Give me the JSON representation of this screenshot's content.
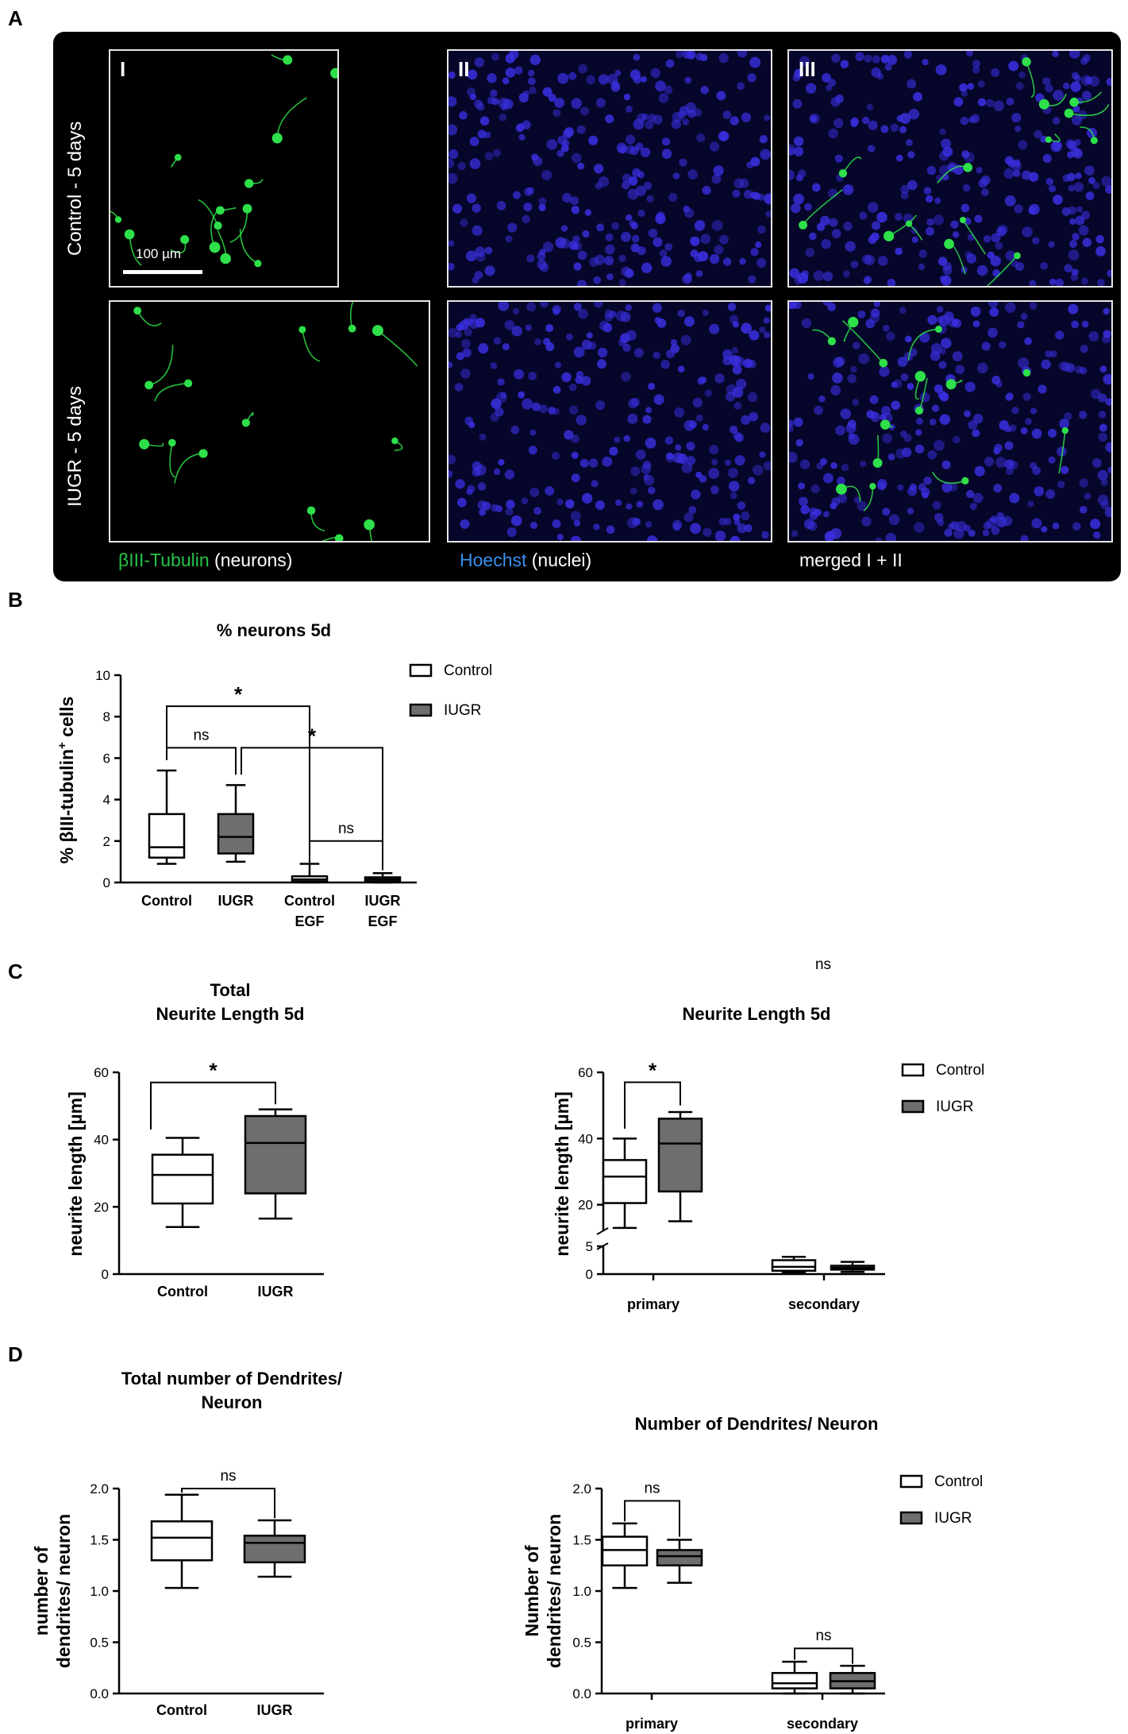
{
  "panelA": {
    "label": "A",
    "row_labels": [
      "Control - 5 days",
      "IUGR - 5 days"
    ],
    "column_labels": [
      "I",
      "II",
      "III"
    ],
    "scale_bar": "100 µm",
    "captions": {
      "c1_colored": "βIII-Tubulin",
      "c1_rest": " (neurons)",
      "c2_colored": "Hoechst",
      "c2_rest": " (nuclei)",
      "c3": "merged I + II"
    },
    "colors": {
      "neurons": "#2ee04a",
      "nuclei": "#3a2fe0",
      "caption_green": "#27c24a",
      "caption_blue": "#3a8ff0"
    }
  },
  "panelB": {
    "label": "B",
    "chart_data": {
      "type": "box",
      "title": "% neurons 5d",
      "ylabel": "% βIII-tubulin+ cells",
      "ylabel_main": "% βIII-tubulin",
      "ylabel_sup": "+",
      "ylabel_tail": " cells",
      "ylim": [
        0,
        10
      ],
      "yticks": [
        "0",
        "2",
        "4",
        "6",
        "8",
        "10"
      ],
      "categories": [
        [
          "Control"
        ],
        [
          "IUGR"
        ],
        [
          "Control",
          "EGF"
        ],
        [
          "IUGR",
          "EGF"
        ]
      ],
      "boxes": [
        {
          "group": "Control",
          "min": 0.9,
          "q1": 1.2,
          "median": 1.7,
          "q3": 3.3,
          "max": 5.4
        },
        {
          "group": "IUGR",
          "min": 1.0,
          "q1": 1.4,
          "median": 2.2,
          "q3": 3.3,
          "max": 4.7
        },
        {
          "group": "Control",
          "min": 0.0,
          "q1": 0.05,
          "median": 0.15,
          "q3": 0.3,
          "max": 0.9
        },
        {
          "group": "IUGR",
          "min": 0.0,
          "q1": 0.05,
          "median": 0.15,
          "q3": 0.25,
          "max": 0.45
        }
      ],
      "comparisons": [
        {
          "from": 0,
          "to": 2,
          "label": "*",
          "y": 8.5
        },
        {
          "from": 0,
          "to": 1,
          "label": "ns",
          "y": 6.5
        },
        {
          "from": 1,
          "to": 3,
          "label": "*",
          "y": 6.5
        },
        {
          "from": 2,
          "to": 3,
          "label": "ns",
          "y": 2.0
        }
      ],
      "legend": [
        {
          "name": "Control",
          "color": "#ffffff"
        },
        {
          "name": "IUGR",
          "color": "#6e6e6e"
        }
      ],
      "legend_position": "right"
    }
  },
  "panelC": {
    "label": "C",
    "chart_data": [
      {
        "type": "box",
        "title_lines": [
          "Total",
          "Neurite Length 5d"
        ],
        "ylabel": "neurite length [µm]",
        "ylim": [
          0,
          60
        ],
        "yticks": [
          "0",
          "20",
          "40",
          "60"
        ],
        "categories": [
          "Control",
          "IUGR"
        ],
        "boxes": [
          {
            "group": "Control",
            "min": 14,
            "q1": 21,
            "median": 29.5,
            "q3": 35.5,
            "max": 40.5
          },
          {
            "group": "IUGR",
            "min": 16.5,
            "q1": 24,
            "median": 39,
            "q3": 47,
            "max": 49
          }
        ],
        "comparisons": [
          {
            "from": 0,
            "to": 1,
            "label": "*",
            "y": 57
          }
        ]
      },
      {
        "type": "box",
        "title": "Neurite Length 5d",
        "ylabel": "neurite length [µm]",
        "axis_break": {
          "lower": [
            0,
            5
          ],
          "upper": [
            12,
            60
          ]
        },
        "yticks_lower": [
          "0",
          "5"
        ],
        "yticks_upper": [
          "20",
          "40",
          "60"
        ],
        "categories": [
          "primary",
          "secondary"
        ],
        "boxes": [
          {
            "category": "primary",
            "group": "Control",
            "min": 13,
            "q1": 20.5,
            "median": 28.5,
            "q3": 33.5,
            "max": 40
          },
          {
            "category": "primary",
            "group": "IUGR",
            "min": 15,
            "q1": 24,
            "median": 38.5,
            "q3": 46,
            "max": 48
          },
          {
            "category": "secondary",
            "group": "Control",
            "min": 0.3,
            "q1": 0.6,
            "median": 1.3,
            "q3": 2.5,
            "max": 3.1
          },
          {
            "category": "secondary",
            "group": "IUGR",
            "min": 0.4,
            "q1": 0.8,
            "median": 1.1,
            "q3": 1.5,
            "max": 2.2
          }
        ],
        "comparisons": [
          {
            "from": 0,
            "to": 1,
            "label": "*",
            "y": 57
          },
          {
            "from": 2,
            "to": 3,
            "label": "ns",
            "y_lower": 4.5
          }
        ],
        "legend": [
          {
            "name": "Control",
            "color": "#ffffff"
          },
          {
            "name": "IUGR",
            "color": "#6e6e6e"
          }
        ],
        "legend_position": "right"
      }
    ]
  },
  "panelD": {
    "label": "D",
    "chart_data": [
      {
        "type": "box",
        "title_lines": [
          "Total number of Dendrites/",
          "Neuron"
        ],
        "ylabel_lines": [
          "number of",
          "dendrites/ neuron"
        ],
        "ylim": [
          0,
          2.0
        ],
        "yticks": [
          "0.0",
          "0.5",
          "1.0",
          "1.5",
          "2.0"
        ],
        "categories": [
          "Control",
          "IUGR"
        ],
        "boxes": [
          {
            "group": "Control",
            "min": 1.03,
            "q1": 1.3,
            "median": 1.52,
            "q3": 1.68,
            "max": 1.94
          },
          {
            "group": "IUGR",
            "min": 1.14,
            "q1": 1.28,
            "median": 1.47,
            "q3": 1.54,
            "max": 1.69
          }
        ],
        "comparisons": [
          {
            "from": 0,
            "to": 1,
            "label": "ns",
            "y": 2.0
          }
        ]
      },
      {
        "type": "box",
        "title": "Number of Dendrites/ Neuron",
        "ylabel_lines": [
          "Number of",
          "dendrites/ neuron"
        ],
        "ylim": [
          0,
          2.0
        ],
        "yticks": [
          "0.0",
          "0.5",
          "1.0",
          "1.5",
          "2.0"
        ],
        "categories": [
          "primary",
          "secondary"
        ],
        "boxes": [
          {
            "category": "primary",
            "group": "Control",
            "min": 1.03,
            "q1": 1.25,
            "median": 1.4,
            "q3": 1.53,
            "max": 1.66
          },
          {
            "category": "primary",
            "group": "IUGR",
            "min": 1.08,
            "q1": 1.25,
            "median": 1.34,
            "q3": 1.4,
            "max": 1.5
          },
          {
            "category": "secondary",
            "group": "Control",
            "min": 0.0,
            "q1": 0.05,
            "median": 0.1,
            "q3": 0.2,
            "max": 0.31
          },
          {
            "category": "secondary",
            "group": "IUGR",
            "min": 0.0,
            "q1": 0.05,
            "median": 0.12,
            "q3": 0.2,
            "max": 0.27
          }
        ],
        "comparisons": [
          {
            "from": 0,
            "to": 1,
            "label": "ns",
            "y": 1.88
          },
          {
            "from": 2,
            "to": 3,
            "label": "ns",
            "y": 0.44
          }
        ],
        "legend": [
          {
            "name": "Control",
            "color": "#ffffff"
          },
          {
            "name": "IUGR",
            "color": "#6e6e6e"
          }
        ],
        "legend_position": "right"
      }
    ]
  }
}
